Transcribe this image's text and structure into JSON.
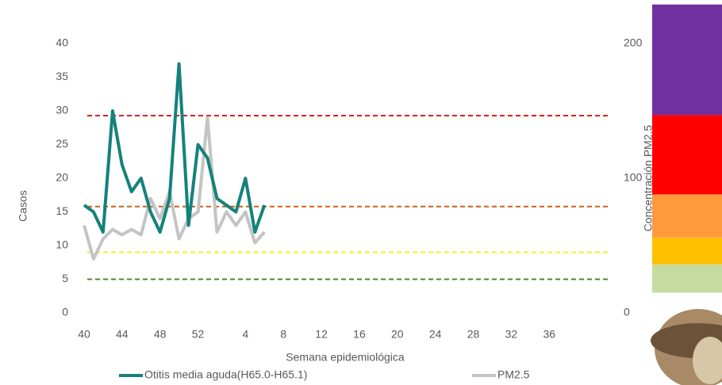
{
  "chart_data": {
    "type": "line",
    "x_label": "Semana epidemiológica",
    "y_label": "Casos",
    "y2_label": "Concentración PM2.5",
    "categories": [
      "40",
      null,
      null,
      null,
      "44",
      null,
      null,
      null,
      "48",
      null,
      null,
      null,
      "52",
      null,
      null,
      null,
      null,
      "4",
      null,
      null,
      null,
      "8",
      null,
      null,
      null,
      "12",
      null,
      null,
      null,
      "16",
      null,
      null,
      null,
      "20",
      null,
      null,
      null,
      "24",
      null,
      null,
      null,
      "28",
      null,
      null,
      null,
      "32",
      null,
      null,
      null,
      "36",
      null,
      null,
      null,
      null,
      null,
      null
    ],
    "series": [
      {
        "name": "Otitis media aguda(H65.0-H65.1)",
        "color": "#14827a",
        "values": [
          16,
          15,
          12,
          30,
          22,
          18,
          20,
          15,
          12,
          17,
          37,
          13,
          25,
          23,
          17,
          16,
          15,
          20,
          12,
          16,
          null,
          null,
          null,
          null,
          null,
          null,
          null,
          null,
          null,
          null,
          null,
          null,
          null,
          null,
          null,
          null,
          null,
          null,
          null,
          null,
          null,
          null,
          null,
          null,
          null,
          null,
          null,
          null,
          null,
          null,
          null,
          null,
          null,
          null,
          null,
          null
        ]
      },
      {
        "name": "PM2.5",
        "color": "#c4c4c4",
        "axis": "y2",
        "values": [
          65,
          40,
          55,
          62,
          58,
          62,
          58,
          85,
          70,
          90,
          55,
          70,
          75,
          145,
          60,
          75,
          65,
          75,
          52,
          60,
          null,
          null,
          null,
          null,
          null,
          null,
          null,
          null,
          null,
          null,
          null,
          null,
          null,
          null,
          null,
          null,
          null,
          null,
          null,
          null,
          null,
          null,
          null,
          null,
          null,
          null,
          null,
          null,
          null,
          null,
          null,
          null,
          null,
          null,
          null,
          null
        ]
      }
    ],
    "ylim": [
      0,
      40
    ],
    "yticks": [
      0,
      5,
      10,
      15,
      20,
      25,
      30,
      35,
      40
    ],
    "y2lim": [
      0,
      200
    ],
    "y2ticks": [
      0,
      100,
      200
    ],
    "thresholds": [
      {
        "value": 29.3,
        "color": "#e02020"
      },
      {
        "value": 15.8,
        "color": "#c8621a"
      },
      {
        "value": 9,
        "color": "#f0f020"
      },
      {
        "value": 5,
        "color": "#4a8a2a"
      }
    ],
    "bands": [
      {
        "from": 15,
        "to": 36,
        "color": "#c5dba0"
      },
      {
        "from": 36,
        "to": 56,
        "color": "#ffc000"
      },
      {
        "from": 56,
        "to": 88,
        "color": "#ff9a3c"
      },
      {
        "from": 88,
        "to": 147,
        "color": "#ff0000"
      },
      {
        "from": 147,
        "to": 229,
        "color": "#7030a0"
      }
    ]
  }
}
